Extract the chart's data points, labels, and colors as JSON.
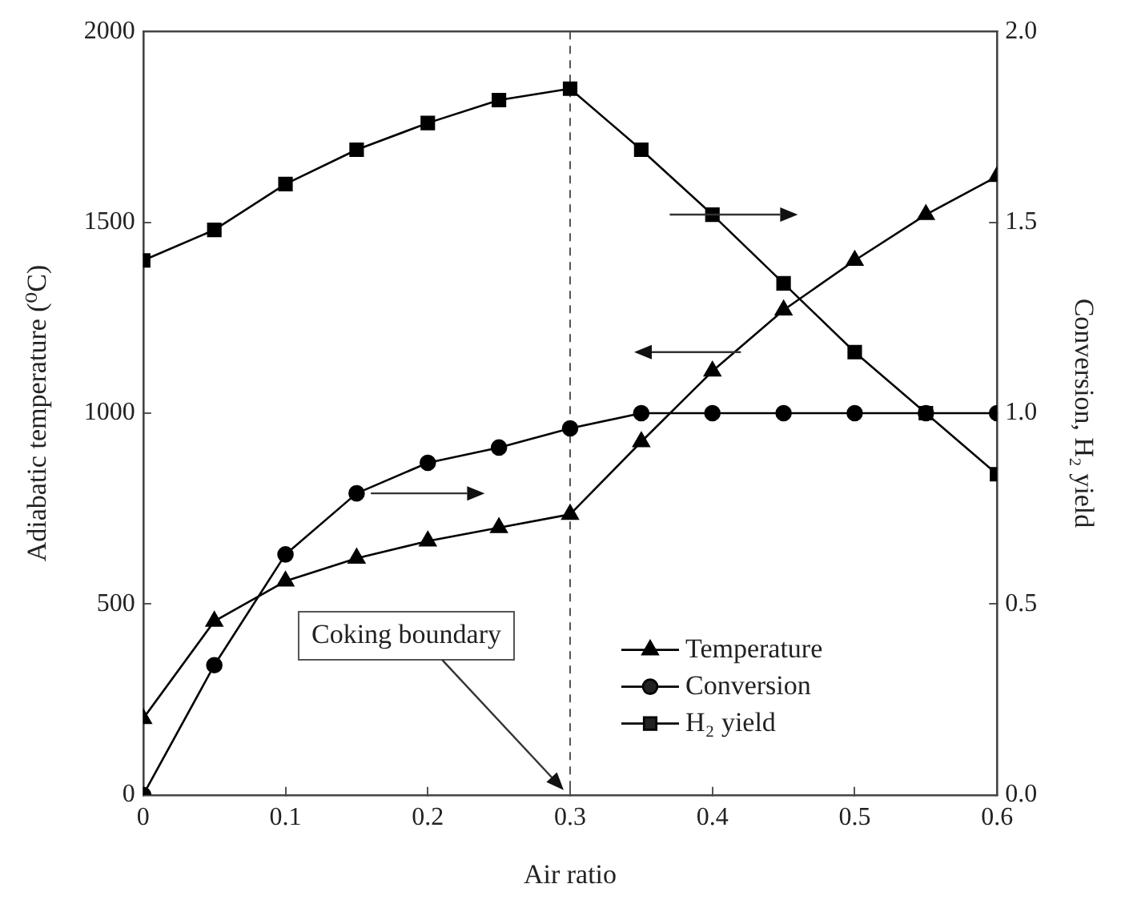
{
  "chart_data": {
    "type": "line",
    "xlabel": "Air ratio",
    "ylabel": "Adiabatic temperature (⁰C)",
    "y2label": "Conversion, H₂ yield",
    "x": [
      0,
      0.05,
      0.1,
      0.15,
      0.2,
      0.25,
      0.3,
      0.35,
      0.4,
      0.45,
      0.5,
      0.55,
      0.6
    ],
    "series": [
      {
        "name": "Temperature",
        "color": "#000000",
        "marker": "triangle",
        "values": [
          200,
          455,
          560,
          620,
          665,
          700,
          735,
          925,
          1110,
          1270,
          1400,
          1520,
          1620
        ]
      },
      {
        "name": "Conversion",
        "color": "#000000",
        "marker": "circle",
        "axis": "y2",
        "values": [
          0,
          0.34,
          0.63,
          0.79,
          0.87,
          0.91,
          0.96,
          1.0,
          1.0,
          1.0,
          1.0,
          1.0,
          1.0
        ]
      },
      {
        "name": "H₂ yield",
        "color": "#000000",
        "marker": "square",
        "axis": "y2",
        "values": [
          1.4,
          1.48,
          1.6,
          1.69,
          1.76,
          1.82,
          1.85,
          1.69,
          1.52,
          1.34,
          1.16,
          1.0,
          0.84
        ]
      }
    ],
    "xlim": [
      0,
      0.6
    ],
    "xticks": [
      0,
      0.1,
      0.2,
      0.3,
      0.4,
      0.5,
      0.6
    ],
    "ylim": [
      0,
      2000
    ],
    "yticks": [
      0,
      500,
      1000,
      1500,
      2000
    ],
    "y2lim": [
      0,
      2
    ],
    "y2ticks": [
      {
        "value": 0,
        "label": "0.0"
      },
      0.5,
      {
        "value": 1,
        "label": "1.0"
      },
      1.5,
      {
        "value": 2,
        "label": "2.0"
      }
    ],
    "ref_lines": [
      {
        "axis": "x",
        "value": 0.3,
        "label": "Coking boundary",
        "line_style": "dashed"
      }
    ],
    "grid": false,
    "legend": "bottom right",
    "line_style": "solid"
  }
}
